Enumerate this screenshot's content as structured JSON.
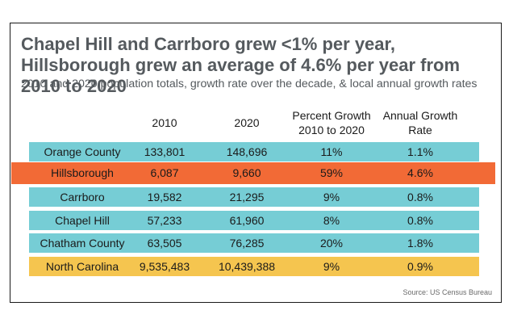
{
  "title": "Chapel Hill and Carrboro grew <1% per year, Hillsborough grew an average of 4.6% per year from 2010 to 2020",
  "subtitle": "2010 and 2020 population totals, growth rate over the decade, & local annual growth rates",
  "source": "Source: US Census Bureau",
  "colors": {
    "county": "#76cdd5",
    "highlight": "#f26a36",
    "state": "#f5c54f",
    "title_text": "#555a5e"
  },
  "chart_data": {
    "type": "table",
    "columns": [
      "",
      "2010",
      "2020",
      "Percent Growth 2010 to 2020",
      "Annual Growth Rate"
    ],
    "column_lines": [
      [
        "",
        ""
      ],
      [
        "2010",
        ""
      ],
      [
        "2020",
        ""
      ],
      [
        "Percent Growth",
        "2010 to 2020"
      ],
      [
        "Annual Growth",
        "Rate"
      ]
    ],
    "rows": [
      {
        "name": "Orange County",
        "v2010": "133,801",
        "v2020": "148,696",
        "pct": "11%",
        "annual": "1.1%",
        "style": "county",
        "values": {
          "pop_2010": 133801,
          "pop_2020": 148696,
          "pct_growth": 11,
          "annual_rate": 1.1
        }
      },
      {
        "name": "Hillsborough",
        "v2010": "6,087",
        "v2020": "9,660",
        "pct": "59%",
        "annual": "4.6%",
        "style": "highlight",
        "values": {
          "pop_2010": 6087,
          "pop_2020": 9660,
          "pct_growth": 59,
          "annual_rate": 4.6
        }
      },
      {
        "name": "Carrboro",
        "v2010": "19,582",
        "v2020": "21,295",
        "pct": "9%",
        "annual": "0.8%",
        "style": "county",
        "values": {
          "pop_2010": 19582,
          "pop_2020": 21295,
          "pct_growth": 9,
          "annual_rate": 0.8
        }
      },
      {
        "name": "Chapel Hill",
        "v2010": "57,233",
        "v2020": "61,960",
        "pct": "8%",
        "annual": "0.8%",
        "style": "county",
        "values": {
          "pop_2010": 57233,
          "pop_2020": 61960,
          "pct_growth": 8,
          "annual_rate": 0.8
        }
      },
      {
        "name": "Chatham County",
        "v2010": "63,505",
        "v2020": "76,285",
        "pct": "20%",
        "annual": "1.8%",
        "style": "county",
        "values": {
          "pop_2010": 63505,
          "pop_2020": 76285,
          "pct_growth": 20,
          "annual_rate": 1.8
        }
      },
      {
        "name": "North Carolina",
        "v2010": "9,535,483",
        "v2020": "10,439,388",
        "pct": "9%",
        "annual": "0.9%",
        "style": "state",
        "values": {
          "pop_2010": 9535483,
          "pop_2020": 10439388,
          "pct_growth": 9,
          "annual_rate": 0.9
        }
      }
    ]
  }
}
